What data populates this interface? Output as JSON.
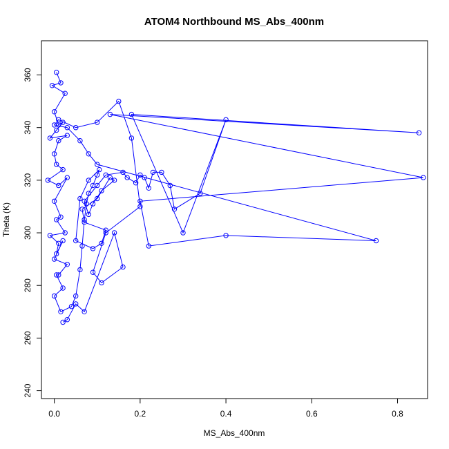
{
  "chart_data": {
    "type": "line",
    "title": "ATOM4 Northbound MS_Abs_400nm",
    "xlabel": "MS_Abs_400nm",
    "ylabel": "Theta (K)",
    "xlim": [
      -0.03,
      0.87
    ],
    "ylim": [
      237,
      373
    ],
    "x_ticks": [
      0.0,
      0.2,
      0.4,
      0.6,
      0.8
    ],
    "x_tick_labels": [
      "0.0",
      "0.2",
      "0.4",
      "0.6",
      "0.8"
    ],
    "y_ticks": [
      240,
      260,
      280,
      300,
      320,
      340,
      360
    ],
    "y_tick_labels": [
      "240",
      "260",
      "280",
      "300",
      "320",
      "340",
      "360"
    ],
    "grid": false,
    "legend": false,
    "colors": {
      "series": "#0000ff",
      "axis": "#000000",
      "background": "#ffffff"
    },
    "markers": "open-circle",
    "series": [
      {
        "x": [
          0.005,
          0.015,
          -0.005,
          0.025,
          0.0,
          0.01,
          0.02,
          0.005,
          -0.01,
          0.03,
          0.01,
          0.0,
          0.005,
          0.02,
          -0.015,
          0.01,
          0.03,
          0.0,
          0.015,
          0.005,
          0.025,
          -0.01,
          0.01,
          0.005,
          0.02,
          0.0,
          0.03,
          0.01,
          0.005,
          0.02,
          0.0,
          0.015,
          0.04,
          0.05,
          0.06,
          0.065,
          0.07,
          0.075,
          0.08,
          0.09,
          0.1,
          0.105,
          0.08,
          0.06,
          0.05,
          0.09,
          0.11,
          0.12,
          0.07,
          0.065,
          0.1,
          0.13,
          0.14,
          0.11,
          0.09,
          0.08,
          0.07,
          0.1,
          0.12,
          0.16,
          0.17,
          0.19,
          0.2,
          0.21,
          0.22,
          0.23,
          0.25,
          0.27,
          0.28,
          0.34,
          0.4,
          0.3,
          0.18,
          0.85,
          0.13,
          0.86,
          0.2,
          0.22,
          0.4,
          0.75,
          0.1,
          0.08,
          0.06,
          0.03,
          0.0,
          0.01,
          0.05,
          0.1,
          0.15,
          0.18,
          0.2,
          0.12,
          0.09,
          0.11,
          0.16,
          0.14,
          0.07,
          0.05,
          0.03,
          0.02
        ],
        "y": [
          361,
          357,
          356,
          353,
          346,
          341,
          342,
          339,
          336,
          337,
          335,
          330,
          326,
          324,
          320,
          318,
          321,
          312,
          306,
          305,
          300,
          299,
          296,
          292,
          297,
          290,
          288,
          284,
          284,
          279,
          276,
          270,
          272,
          276,
          286,
          295,
          305,
          311,
          315,
          318,
          322,
          324,
          320,
          313,
          297,
          294,
          296,
          301,
          304,
          309,
          313,
          321,
          320,
          316,
          311,
          307,
          312,
          318,
          322,
          323,
          321,
          319,
          322,
          321,
          317,
          323,
          323,
          318,
          309,
          315,
          343,
          300,
          345,
          338,
          345,
          321,
          312,
          295,
          299,
          297,
          326,
          330,
          335,
          340,
          341,
          343,
          340,
          342,
          350,
          336,
          310,
          300,
          285,
          281,
          287,
          300,
          270,
          273,
          267,
          266
        ]
      }
    ]
  }
}
